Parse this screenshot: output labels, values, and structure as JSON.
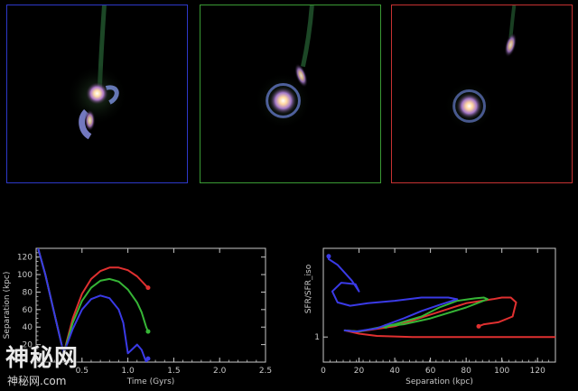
{
  "panels": [
    {
      "border": "#2d38c9",
      "stage": "interacting"
    },
    {
      "border": "#3a9a34",
      "stage": "separating"
    },
    {
      "border": "#c63232",
      "stage": "separated"
    }
  ],
  "chart_data": [
    {
      "type": "line",
      "title": "",
      "xlabel": "Time (Gyrs)",
      "ylabel": "Separation (kpc)",
      "xlim": [
        0,
        2.5
      ],
      "ylim": [
        0,
        130
      ],
      "xticks": [
        "0.5",
        "1.0",
        "1.5",
        "2.0",
        "2.5"
      ],
      "yticks": [
        "20",
        "40",
        "60",
        "80",
        "100",
        "120"
      ],
      "series": [
        {
          "color": "#e03030",
          "x": [
            0.0,
            0.1,
            0.2,
            0.3,
            0.4,
            0.5,
            0.6,
            0.7,
            0.8,
            0.9,
            1.0,
            1.1,
            1.2,
            1.22
          ],
          "y": [
            138,
            100,
            55,
            10,
            50,
            78,
            95,
            104,
            108,
            108,
            105,
            98,
            87,
            85
          ],
          "end_marker": true
        },
        {
          "color": "#36b536",
          "x": [
            0.0,
            0.1,
            0.2,
            0.3,
            0.4,
            0.5,
            0.6,
            0.7,
            0.8,
            0.9,
            1.0,
            1.1,
            1.15,
            1.2,
            1.22
          ],
          "y": [
            138,
            100,
            55,
            10,
            45,
            70,
            85,
            93,
            95,
            92,
            83,
            68,
            57,
            40,
            35
          ],
          "end_marker": true
        },
        {
          "color": "#3a3ae6",
          "x": [
            0.0,
            0.1,
            0.2,
            0.3,
            0.4,
            0.5,
            0.6,
            0.7,
            0.8,
            0.9,
            0.95,
            1.0,
            1.05,
            1.1,
            1.15,
            1.2,
            1.22
          ],
          "y": [
            138,
            100,
            55,
            10,
            38,
            60,
            72,
            76,
            73,
            60,
            45,
            10,
            15,
            20,
            14,
            0,
            4
          ],
          "end_marker": true
        }
      ]
    },
    {
      "type": "line",
      "title": "",
      "xlabel": "Separation (kpc)",
      "ylabel": "SFR/SFR_iso",
      "xlim": [
        0,
        130
      ],
      "ylim": [
        0.8,
        2.2
      ],
      "log_y": true,
      "xticks": [
        "0",
        "20",
        "40",
        "60",
        "80",
        "100",
        "120"
      ],
      "yticks": [
        "1"
      ],
      "series": [
        {
          "color": "#e03030",
          "x": [
            130,
            110,
            90,
            70,
            50,
            30,
            20,
            12,
            20,
            40,
            60,
            80,
            95,
            100,
            105,
            108,
            106,
            98,
            90,
            87
          ],
          "y": [
            1.0,
            1.0,
            1.0,
            1.0,
            1.0,
            1.01,
            1.03,
            1.06,
            1.05,
            1.1,
            1.22,
            1.35,
            1.4,
            1.42,
            1.42,
            1.36,
            1.2,
            1.14,
            1.12,
            1.1
          ],
          "end_marker": true
        },
        {
          "color": "#36b536",
          "x": [
            12,
            20,
            40,
            55,
            65,
            75,
            85,
            90,
            92,
            80,
            60,
            45,
            35
          ],
          "y": [
            1.06,
            1.05,
            1.12,
            1.2,
            1.3,
            1.38,
            1.41,
            1.42,
            1.4,
            1.3,
            1.18,
            1.12,
            1.1
          ],
          "end_marker": true
        },
        {
          "color": "#3a3ae6",
          "x": [
            12,
            18,
            30,
            45,
            55,
            65,
            75,
            70,
            55,
            40,
            25,
            15,
            8,
            5,
            10,
            18,
            20,
            16,
            8,
            3,
            3
          ],
          "y": [
            1.06,
            1.05,
            1.08,
            1.18,
            1.26,
            1.33,
            1.4,
            1.42,
            1.42,
            1.38,
            1.35,
            1.32,
            1.36,
            1.5,
            1.62,
            1.6,
            1.5,
            1.65,
            1.9,
            2.0,
            2.05
          ],
          "end_marker": true
        }
      ]
    }
  ],
  "watermark": {
    "main": "神秘网",
    "sub": "神秘网.com"
  }
}
